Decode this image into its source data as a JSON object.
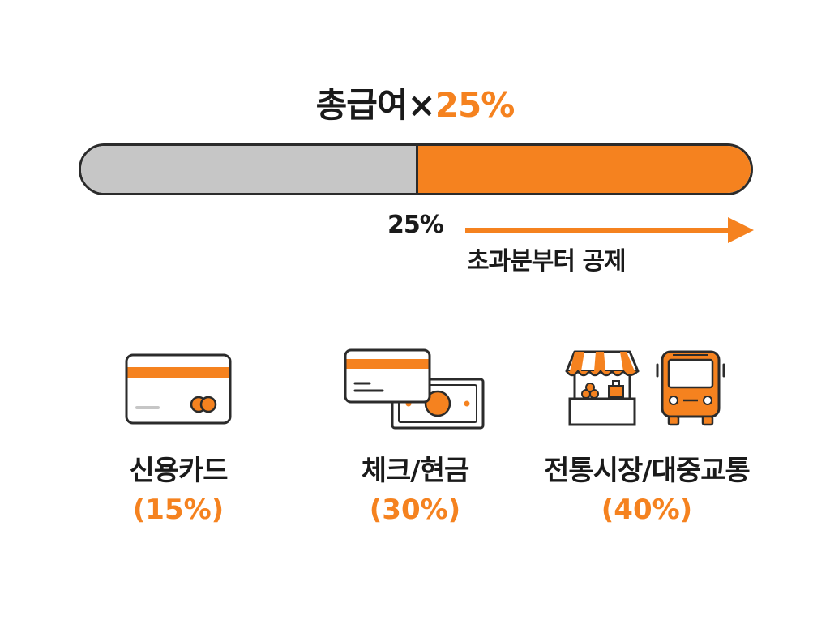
{
  "title": {
    "prefix": "총급여×",
    "highlight": "25%"
  },
  "threshold": {
    "label": "25%",
    "caption": "초과분부터 공제",
    "base_fraction": 0.5
  },
  "categories": [
    {
      "label": "신용카드",
      "rate": "(15%)",
      "icon": "credit-card-icon"
    },
    {
      "label": "체크/현금",
      "rate": "(30%)",
      "icon": "check-card-cash-icon"
    },
    {
      "label": "전통시장/대중교통",
      "rate": "(40%)",
      "icon": "market-bus-icon"
    }
  ],
  "colors": {
    "accent": "#f5821f",
    "base": "#c6c6c6",
    "outline": "#2b2b2b"
  }
}
